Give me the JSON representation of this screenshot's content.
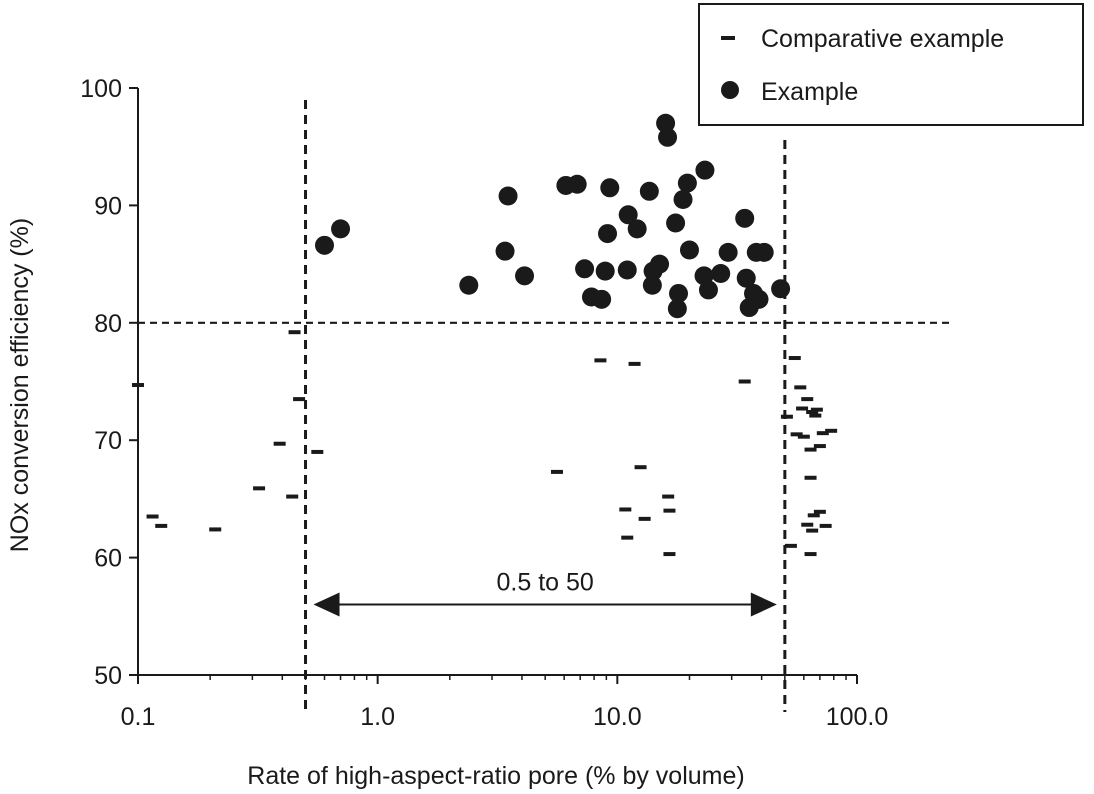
{
  "chart_data": {
    "type": "scatter",
    "xscale": "log",
    "xlim": [
      0.1,
      100
    ],
    "ylim": [
      50,
      100
    ],
    "xlabel": "Rate of high-aspect-ratio pore (% by volume)",
    "ylabel": "NOx conversion efficiency (%)",
    "x_ticks": [
      "0.1",
      "1.0",
      "10.0",
      "100.0"
    ],
    "y_ticks": [
      "50",
      "60",
      "70",
      "80",
      "90",
      "100"
    ],
    "grid": false,
    "legend_position": "top-right",
    "series": [
      {
        "name": "Comparative example",
        "marker": "dash",
        "points": [
          [
            0.1,
            74.7
          ],
          [
            0.115,
            63.5
          ],
          [
            0.125,
            62.7
          ],
          [
            0.21,
            62.4
          ],
          [
            0.32,
            65.9
          ],
          [
            0.39,
            69.7
          ],
          [
            0.44,
            65.2
          ],
          [
            0.45,
            79.2
          ],
          [
            0.47,
            73.5
          ],
          [
            0.56,
            69.0
          ],
          [
            5.6,
            67.3
          ],
          [
            8.5,
            76.8
          ],
          [
            10.8,
            64.1
          ],
          [
            11.0,
            61.7
          ],
          [
            11.8,
            76.5
          ],
          [
            12.5,
            67.7
          ],
          [
            13.0,
            63.3
          ],
          [
            16.3,
            65.2
          ],
          [
            16.5,
            64.0
          ],
          [
            16.5,
            60.3
          ],
          [
            34.0,
            75.0
          ],
          [
            51.0,
            72.0
          ],
          [
            53.0,
            61.0
          ],
          [
            55.0,
            77.0
          ],
          [
            56.0,
            70.5
          ],
          [
            58.0,
            74.5
          ],
          [
            59.0,
            72.7
          ],
          [
            60.0,
            70.3
          ],
          [
            62.0,
            73.5
          ],
          [
            62.0,
            62.8
          ],
          [
            64.0,
            69.2
          ],
          [
            64.0,
            66.8
          ],
          [
            64.0,
            60.3
          ],
          [
            65.0,
            72.4
          ],
          [
            65.0,
            62.3
          ],
          [
            66.0,
            63.6
          ],
          [
            67.0,
            72.1
          ],
          [
            68.0,
            72.6
          ],
          [
            70.0,
            69.5
          ],
          [
            70.0,
            63.9
          ],
          [
            72.0,
            70.6
          ],
          [
            74.0,
            62.7
          ],
          [
            78.0,
            70.8
          ]
        ]
      },
      {
        "name": "Example",
        "marker": "circle",
        "points": [
          [
            0.6,
            86.6
          ],
          [
            0.7,
            88.0
          ],
          [
            2.4,
            83.2
          ],
          [
            3.4,
            86.1
          ],
          [
            3.5,
            90.8
          ],
          [
            4.1,
            84.0
          ],
          [
            6.1,
            91.7
          ],
          [
            6.8,
            91.8
          ],
          [
            7.3,
            84.6
          ],
          [
            7.8,
            82.2
          ],
          [
            8.6,
            82.0
          ],
          [
            8.9,
            84.4
          ],
          [
            9.1,
            87.6
          ],
          [
            9.3,
            91.5
          ],
          [
            11.0,
            84.5
          ],
          [
            11.1,
            89.2
          ],
          [
            12.1,
            88.0
          ],
          [
            13.6,
            91.2
          ],
          [
            14.0,
            83.2
          ],
          [
            14.1,
            84.4
          ],
          [
            15.0,
            85.0
          ],
          [
            15.9,
            97.0
          ],
          [
            16.2,
            95.8
          ],
          [
            17.5,
            88.5
          ],
          [
            17.8,
            81.2
          ],
          [
            18.0,
            82.5
          ],
          [
            18.8,
            90.5
          ],
          [
            19.6,
            91.9
          ],
          [
            20.0,
            86.2
          ],
          [
            23.0,
            84.0
          ],
          [
            23.2,
            93.0
          ],
          [
            24.0,
            82.8
          ],
          [
            27.0,
            84.2
          ],
          [
            29.0,
            86.0
          ],
          [
            34.0,
            88.9
          ],
          [
            34.5,
            83.8
          ],
          [
            35.5,
            81.3
          ],
          [
            37.0,
            82.5
          ],
          [
            38.0,
            86.0
          ],
          [
            39.0,
            82.0
          ],
          [
            41.0,
            86.0
          ],
          [
            48.0,
            82.9
          ]
        ]
      }
    ],
    "reference_lines": {
      "horizontal_y": 80,
      "vertical_x": [
        0.5,
        50
      ]
    },
    "annotations": [
      {
        "text": "0.5 to 50",
        "from_x": 0.5,
        "to_x": 50,
        "y": 56,
        "type": "double-arrow"
      }
    ]
  }
}
